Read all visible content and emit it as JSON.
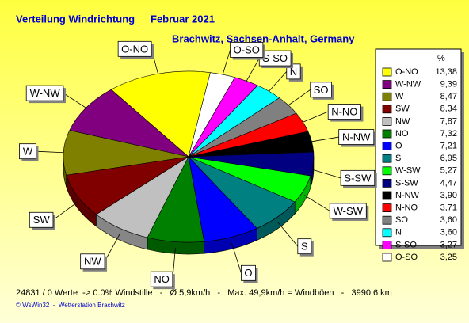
{
  "chart_data": {
    "type": "pie",
    "title": "Verteilung Windrichtung",
    "period": "Februar 2021",
    "subtitle": "Brachwitz, Sachsen-Anhalt, Germany",
    "legend_header": "%",
    "legend": "right",
    "categories": [
      "O-NO",
      "W-NW",
      "W",
      "SW",
      "NW",
      "NO",
      "O",
      "S",
      "W-SW",
      "S-SW",
      "N-NW",
      "N-NO",
      "SO",
      "N",
      "S-SO",
      "O-SO"
    ],
    "values": [
      13.38,
      9.39,
      8.47,
      8.34,
      7.87,
      7.32,
      7.21,
      6.95,
      5.27,
      4.47,
      3.9,
      3.71,
      3.6,
      3.6,
      3.27,
      3.25
    ],
    "value_labels": [
      "13,38",
      "9,39",
      "8,47",
      "8,34",
      "7,87",
      "7,32",
      "7,21",
      "6,95",
      "5,27",
      "4,47",
      "3,90",
      "3,71",
      "3,60",
      "3,60",
      "3,27",
      "3,25"
    ],
    "colors": [
      "#ffff00",
      "#800080",
      "#808000",
      "#800000",
      "#c0c0c0",
      "#008000",
      "#0000ff",
      "#008080",
      "#00ff00",
      "#000080",
      "#000000",
      "#ff0000",
      "#808080",
      "#00ffff",
      "#ff00ff",
      "#ffffff"
    ],
    "footer": "24831 / 0 Werte  -> 0.0% Windstille   -   Ø 5,9km/h   -   Max. 49,9km/h = Windböen   -   3990.6 km",
    "credit": "© WsWin32  -  Wetterstation Brachwitz"
  }
}
